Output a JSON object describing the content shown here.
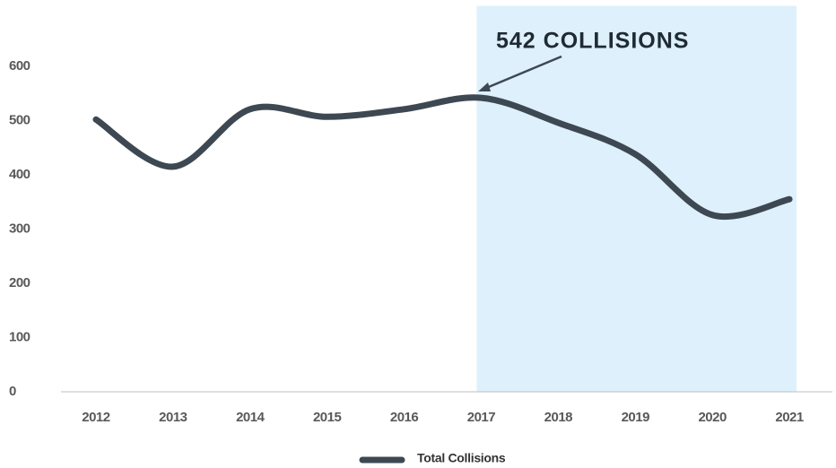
{
  "chart_data": {
    "type": "line",
    "categories": [
      "2012",
      "2013",
      "2014",
      "2015",
      "2016",
      "2017",
      "2018",
      "2019",
      "2020",
      "2021"
    ],
    "series": [
      {
        "name": "Total Collisions",
        "color": "#3d4852",
        "values": [
          502,
          415,
          521,
          507,
          521,
          542,
          496,
          438,
          326,
          355
        ]
      }
    ],
    "ylim": [
      0,
      700
    ],
    "yticks": [
      0,
      100,
      200,
      300,
      400,
      500,
      600
    ],
    "smooth": true,
    "highlight": {
      "start": "2017",
      "end": "2021",
      "color": "#ddf0fc"
    },
    "annotation": "542 COLLISIONS",
    "legend": "bottom"
  }
}
